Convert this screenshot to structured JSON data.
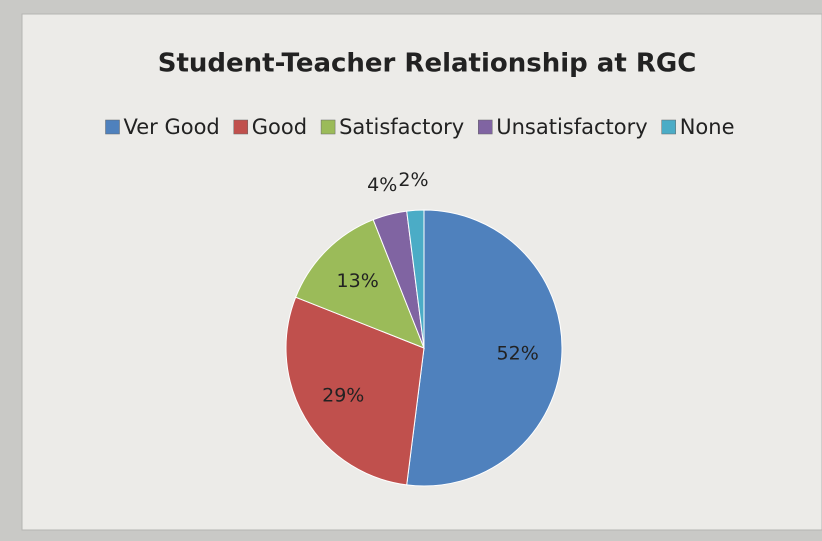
{
  "chart_data": {
    "type": "pie",
    "title": "Student-Teacher Relationship at RGC",
    "categories": [
      "Ver Good",
      "Good",
      "Satisfactory",
      "Unsatisfactory",
      "None"
    ],
    "values": [
      52,
      29,
      13,
      4,
      2
    ],
    "value_labels": [
      "52%",
      "29%",
      "13%",
      "4%",
      "2%"
    ],
    "colors": [
      "#4f81bd",
      "#c0504d",
      "#9bbb59",
      "#8064a2",
      "#4bacc6"
    ],
    "legend": "top"
  }
}
